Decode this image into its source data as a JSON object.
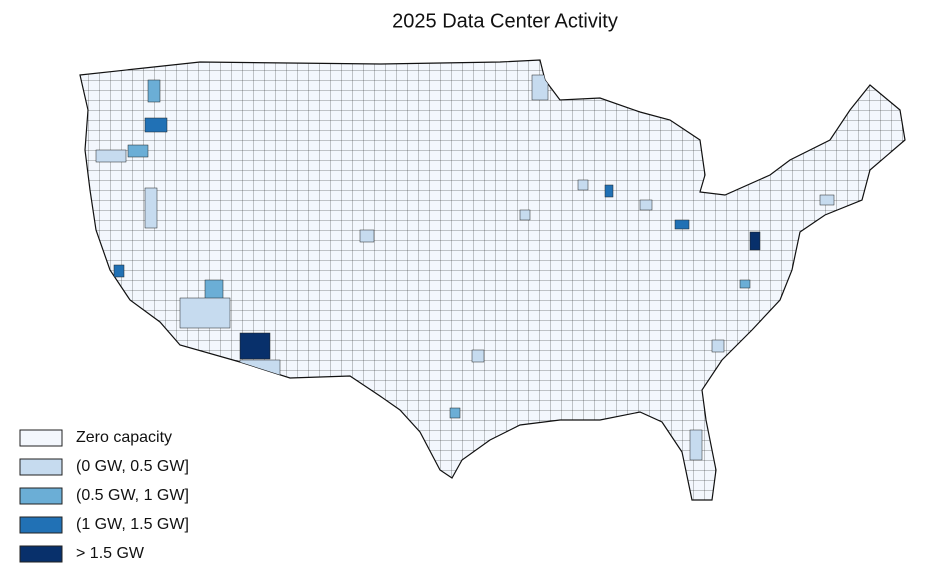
{
  "title": "2025 Data Center Activity",
  "legend": [
    {
      "label": "Zero capacity",
      "color": "#f3f7fd"
    },
    {
      "label": "(0 GW, 0.5 GW]",
      "color": "#c6dbef"
    },
    {
      "label": "(0.5 GW, 1 GW]",
      "color": "#6baed6"
    },
    {
      "label": "(1 GW, 1.5 GW]",
      "color": "#2171b5"
    },
    {
      "label": "> 1.5 GW",
      "color": "#08306b"
    }
  ]
}
